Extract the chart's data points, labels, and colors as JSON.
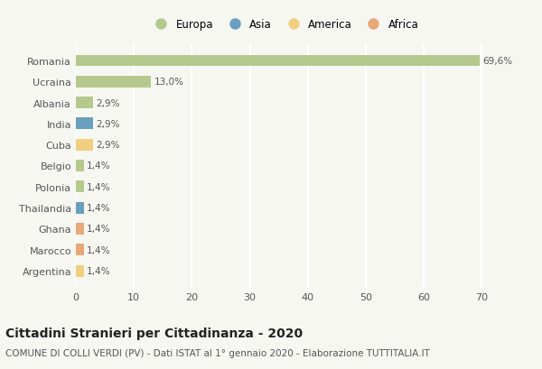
{
  "countries": [
    "Romania",
    "Ucraina",
    "Albania",
    "India",
    "Cuba",
    "Belgio",
    "Polonia",
    "Thailandia",
    "Ghana",
    "Marocco",
    "Argentina"
  ],
  "values": [
    69.6,
    13.0,
    2.9,
    2.9,
    2.9,
    1.4,
    1.4,
    1.4,
    1.4,
    1.4,
    1.4
  ],
  "labels": [
    "69,6%",
    "13,0%",
    "2,9%",
    "2,9%",
    "2,9%",
    "1,4%",
    "1,4%",
    "1,4%",
    "1,4%",
    "1,4%",
    "1,4%"
  ],
  "continents": [
    "Europa",
    "Europa",
    "Europa",
    "Asia",
    "America",
    "Europa",
    "Europa",
    "Asia",
    "Africa",
    "Africa",
    "America"
  ],
  "continent_colors": {
    "Europa": "#b5c98e",
    "Asia": "#6a9fc0",
    "America": "#f0d080",
    "Africa": "#e8a878"
  },
  "legend_labels": [
    "Europa",
    "Asia",
    "America",
    "Africa"
  ],
  "legend_colors": [
    "#b5c98e",
    "#6a9fc0",
    "#f0d080",
    "#e8a878"
  ],
  "xlim": [
    0,
    72
  ],
  "xticks": [
    0,
    10,
    20,
    30,
    40,
    50,
    60,
    70
  ],
  "title": "Cittadini Stranieri per Cittadinanza - 2020",
  "subtitle": "COMUNE DI COLLI VERDI (PV) - Dati ISTAT al 1° gennaio 2020 - Elaborazione TUTTITALIA.IT",
  "background_color": "#f7f7f2",
  "grid_color": "#ffffff",
  "bar_height": 0.55,
  "title_fontsize": 10,
  "subtitle_fontsize": 7.5,
  "tick_fontsize": 8,
  "label_fontsize": 7.5
}
